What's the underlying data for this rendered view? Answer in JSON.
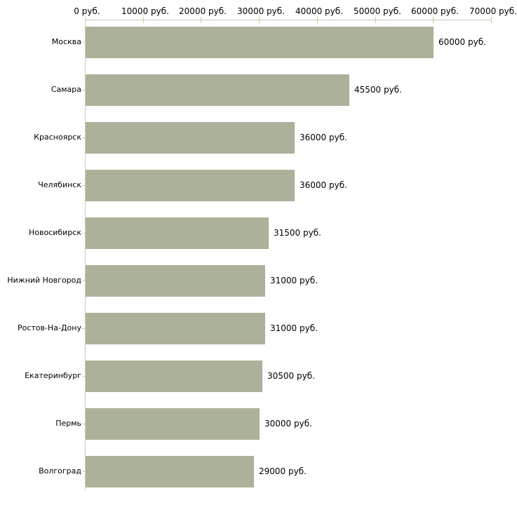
{
  "chart_data": {
    "type": "bar",
    "orientation": "horizontal",
    "title": "",
    "xlabel": "",
    "ylabel": "",
    "unit": "руб.",
    "xlim": [
      0,
      70000
    ],
    "grid": false,
    "legend": "none",
    "categories": [
      "Москва",
      "Самара",
      "Красноярск",
      "Челябинск",
      "Новосибирск",
      "Нижний Новгород",
      "Ростов-На-Дону",
      "Екатеринбург",
      "Пермь",
      "Волгоград"
    ],
    "values": [
      60000,
      45500,
      36000,
      36000,
      31500,
      31000,
      31000,
      30500,
      30000,
      29000
    ],
    "value_labels": [
      "60000 руб.",
      "45500 руб.",
      "36000 руб.",
      "36000 руб.",
      "31500 руб.",
      "31000 руб.",
      "31000 руб.",
      "30500 руб.",
      "30000 руб.",
      "29000 руб."
    ],
    "x_tick_values": [
      0,
      10000,
      20000,
      30000,
      40000,
      50000,
      60000,
      70000
    ],
    "x_tick_labels": [
      "0 руб.",
      "10000 руб.",
      "20000 руб.",
      "30000 руб.",
      "40000 руб.",
      "50000 руб.",
      "60000 руб.",
      "70000 руб."
    ],
    "colors": {
      "bar": "#acb199",
      "axis_line": "#c8c8c2",
      "tick_mark": "#cccc99",
      "text": "#000000",
      "background": "#ffffff"
    }
  }
}
